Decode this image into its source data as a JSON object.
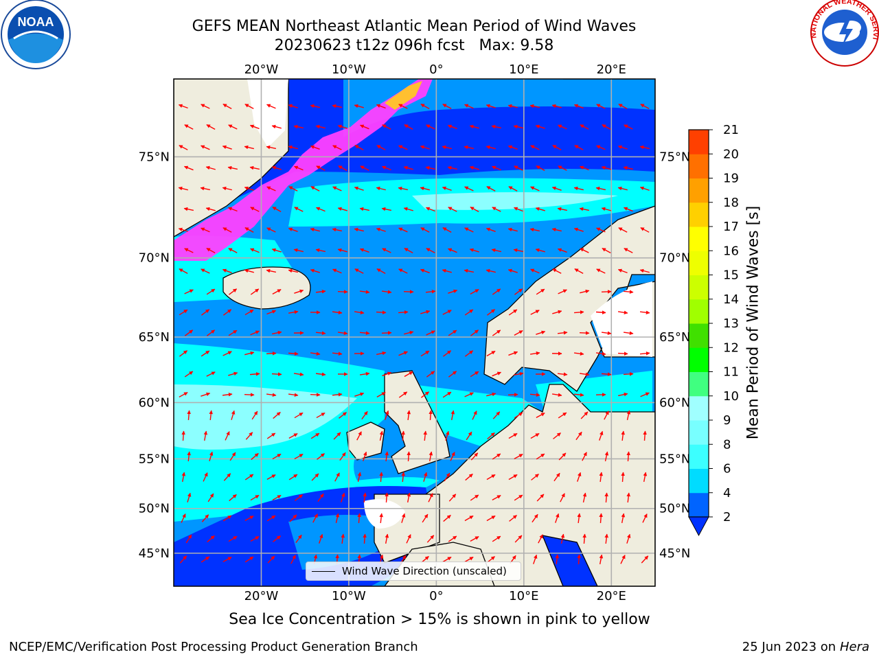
{
  "title": {
    "line1": "GEFS MEAN Northeast Atlantic Mean Period of Wind Waves",
    "line2": "20230623 t12z 096h fcst   Max: 9.58"
  },
  "subtitle": "Sea Ice Concentration > 15% is shown in pink to yellow",
  "footer": {
    "left": "NCEP/EMC/Verification Post Processing Product Generation Branch",
    "right_date": "25 Jun 2023 on",
    "right_host": "Hera"
  },
  "legend": {
    "label": "Wind Wave Direction (unscaled)"
  },
  "map": {
    "lon_range": [
      -30,
      25
    ],
    "lat_range": [
      41,
      78
    ],
    "lon_ticks": [
      {
        "value": -20,
        "label": "20°W"
      },
      {
        "value": -10,
        "label": "10°W"
      },
      {
        "value": 0,
        "label": "0°"
      },
      {
        "value": 10,
        "label": "10°E"
      },
      {
        "value": 20,
        "label": "20°E"
      }
    ],
    "lat_ticks": [
      {
        "value": 75,
        "label": "75°N"
      },
      {
        "value": 70,
        "label": "70°N"
      },
      {
        "value": 65,
        "label": "65°N"
      },
      {
        "value": 60,
        "label": "60°N"
      },
      {
        "value": 55,
        "label": "55°N"
      },
      {
        "value": 50,
        "label": "50°N"
      },
      {
        "value": 45,
        "label": "45°N"
      }
    ],
    "colors": {
      "land": "#efedde",
      "ocean_low": "#0032ff",
      "ocean_mid": "#0096ff",
      "ocean_high": "#00ffff",
      "ocean_peak": "#8cffff",
      "ice_pink": "#ff40ff",
      "ice_yellow": "#ffc030",
      "arrow": "#ff0000",
      "grid": "#b0b0b0"
    }
  },
  "colorbar": {
    "title": "Mean Period of Wind Waves [s]",
    "ticks": [
      "2",
      "4",
      "6",
      "8",
      "9",
      "10",
      "11",
      "12",
      "13",
      "14",
      "15",
      "16",
      "17",
      "18",
      "19",
      "20",
      "21"
    ],
    "colors": [
      "#0064ff",
      "#00dcff",
      "#3cffff",
      "#78ffff",
      "#a0ffff",
      "#40ff80",
      "#00ff00",
      "#40e000",
      "#a0ff00",
      "#ccff00",
      "#eeff00",
      "#ffff00",
      "#ffd000",
      "#ffa000",
      "#ff7000",
      "#ff4000",
      "#ff1000",
      "#ff0000"
    ],
    "extend_color": "#0032ff"
  },
  "logos": {
    "noaa": "NOAA",
    "nws_arc": "NATIONAL WEATHER SERVICE"
  }
}
